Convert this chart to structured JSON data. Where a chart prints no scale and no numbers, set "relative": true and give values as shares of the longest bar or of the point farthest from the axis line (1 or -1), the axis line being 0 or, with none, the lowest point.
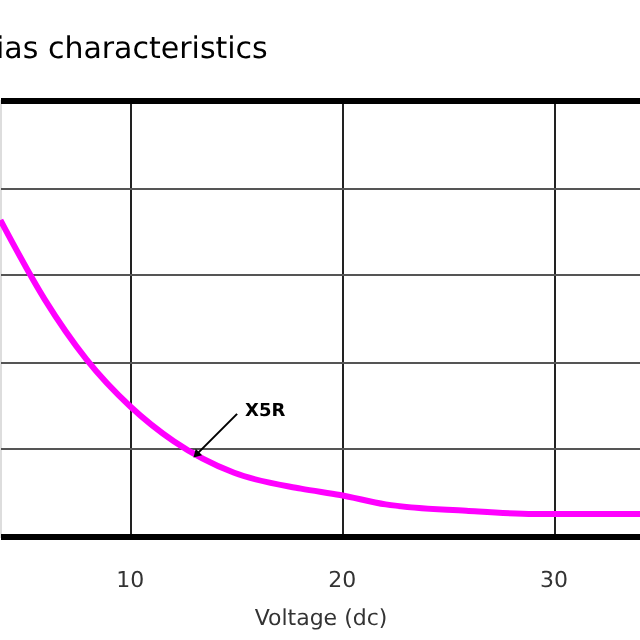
{
  "chart_data": {
    "type": "line",
    "title": "ias characteristics",
    "xlabel": "Voltage (dc)",
    "relative": true,
    "tick_labels": "x",
    "grid": true,
    "legend": false,
    "marker": "none",
    "line_style": "solid",
    "xlim": [
      3.9,
      34.1
    ],
    "xticks": [
      10,
      20,
      30
    ],
    "series": [
      {
        "color": "#ff00ff",
        "x": [
          3.92,
          6.0,
          7.97,
          10.05,
          12.1,
          14.95,
          18.1,
          19.95,
          22.1,
          25.9,
          29.1,
          34.1
        ],
        "values": [
          1,
          0.75,
          0.56,
          0.41,
          0.3,
          0.2,
          0.15,
          0.13,
          0.1,
          0.08,
          0.07,
          0.07
        ]
      }
    ],
    "annotations": [
      {
        "text": "X5R",
        "x": 13.2,
        "y": 0.26
      }
    ]
  }
}
